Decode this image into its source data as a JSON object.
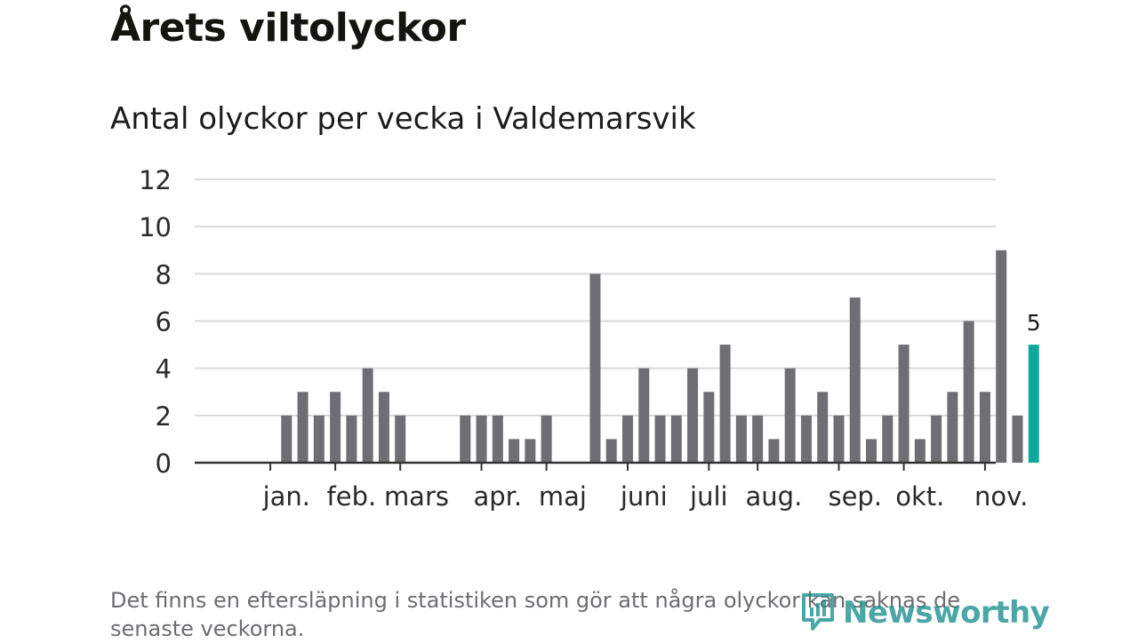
{
  "title": "Årets viltolyckor",
  "subtitle": "Antal olyckor per vecka i Valdemarsvik",
  "footnote": "Det finns en eftersläpning i statistiken som gör att några olyckor kan saknas de senaste veckorna.",
  "brand": {
    "name": "Newsworthy",
    "icon": "newsworthy-logo-icon",
    "color": "#0f8a87"
  },
  "colors": {
    "bar": "#6f6e73",
    "highlight": "#0ea99b",
    "grid": "#d9d9d9",
    "axis": "#333333"
  },
  "chart_data": {
    "type": "bar",
    "title": "Antal olyckor per vecka i Valdemarsvik",
    "xlabel": "",
    "ylabel": "",
    "ylim": [
      0,
      12
    ],
    "yticks": [
      0,
      2,
      4,
      6,
      8,
      10,
      12
    ],
    "grid": true,
    "weeks": [
      1,
      2,
      3,
      4,
      5,
      6,
      7,
      8,
      9,
      10,
      11,
      12,
      13,
      14,
      15,
      16,
      17,
      18,
      19,
      20,
      21,
      22,
      23,
      24,
      25,
      26,
      27,
      28,
      29,
      30,
      31,
      32,
      33,
      34,
      35,
      36,
      37,
      38,
      39,
      40,
      41,
      42,
      43,
      44,
      45,
      46,
      47,
      48,
      49,
      50
    ],
    "values": [
      0,
      0,
      0,
      2,
      3,
      2,
      3,
      2,
      4,
      3,
      2,
      0,
      0,
      0,
      2,
      2,
      2,
      1,
      1,
      2,
      0,
      0,
      8,
      1,
      2,
      4,
      2,
      2,
      4,
      3,
      5,
      2,
      2,
      1,
      4,
      2,
      3,
      2,
      7,
      1,
      2,
      5,
      1,
      2,
      3,
      6,
      3,
      9,
      2,
      5
    ],
    "highlight_index": 49,
    "highlight_label": "5",
    "month_labels": [
      "jan.",
      "feb.",
      "mars",
      "apr.",
      "maj",
      "juni",
      "juli",
      "aug.",
      "sep.",
      "okt.",
      "nov."
    ],
    "month_tick_weeks": [
      3,
      7,
      11,
      16,
      20,
      25,
      30,
      33,
      38,
      42,
      47
    ],
    "month_label_weeks": [
      4,
      8,
      12,
      17,
      21,
      26,
      30,
      34,
      39,
      43,
      48
    ]
  }
}
